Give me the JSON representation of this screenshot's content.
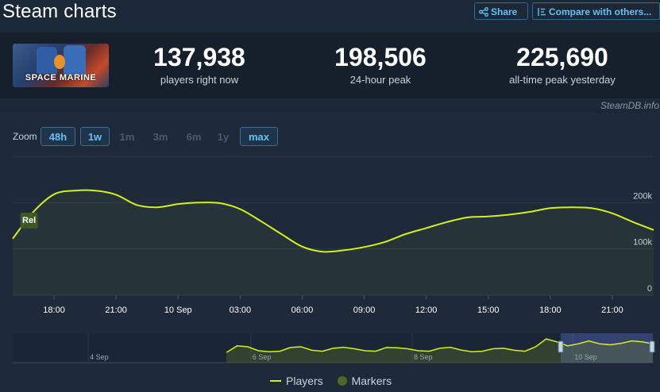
{
  "header": {
    "title": "Steam charts",
    "share_label": "Share",
    "compare_label": "Compare with others..."
  },
  "game": {
    "logo_text": "SPACE MARINE"
  },
  "stats": [
    {
      "value": "137,938",
      "label": "players right now"
    },
    {
      "value": "198,506",
      "label": "24-hour peak"
    },
    {
      "value": "225,690",
      "label": "all-time peak yesterday"
    }
  ],
  "credit": "SteamDB.info",
  "zoom": {
    "label": "Zoom",
    "options": [
      "48h",
      "1w",
      "1m",
      "3m",
      "6m",
      "1y",
      "max"
    ],
    "enabled": [
      true,
      true,
      false,
      false,
      false,
      false,
      true
    ]
  },
  "colors": {
    "line": "#d4f01a",
    "marker": "#4a6a2a",
    "accent": "#66c0f4",
    "background": "#1b2838"
  },
  "chart_data": {
    "type": "line",
    "y_tick_labels": [
      "200k",
      "100k",
      "0"
    ],
    "y_ticks": [
      200000,
      100000,
      0
    ],
    "ylim": [
      0,
      300000
    ],
    "x_tick_labels": [
      "18:00",
      "21:00",
      "10 Sep",
      "03:00",
      "06:00",
      "09:00",
      "12:00",
      "15:00",
      "18:00",
      "21:00"
    ],
    "x_tick_hours": [
      18,
      21,
      24,
      27,
      30,
      33,
      36,
      39,
      42,
      45
    ],
    "xlim_hours": [
      16,
      47
    ],
    "marker_label": "Rel",
    "marker_hour": 16.6,
    "series": [
      {
        "name": "Players",
        "x_hours": [
          16,
          17,
          18,
          19,
          20,
          21,
          22,
          23,
          24,
          25,
          26,
          27,
          28,
          29,
          30,
          31,
          32,
          33,
          34,
          35,
          36,
          37,
          38,
          39,
          40,
          41,
          42,
          43,
          44,
          45,
          46,
          47
        ],
        "values": [
          122000,
          180000,
          218000,
          226000,
          226000,
          217000,
          195000,
          190000,
          197000,
          200000,
          199000,
          186000,
          160000,
          132000,
          105000,
          94000,
          97000,
          104000,
          115000,
          132000,
          145000,
          158000,
          168000,
          170000,
          174000,
          180000,
          188000,
          190000,
          188000,
          177000,
          158000,
          141000
        ]
      }
    ],
    "navigator": {
      "labels": [
        "4 Sep",
        "6 Sep",
        "8 Sep",
        "10 Sep"
      ],
      "label_positions": [
        0.118,
        0.372,
        0.624,
        0.875
      ],
      "data_start": 0.334,
      "selected_range": [
        0.856,
        1.0
      ],
      "values": [
        0.35,
        0.62,
        0.58,
        0.42,
        0.38,
        0.4,
        0.55,
        0.58,
        0.44,
        0.4,
        0.52,
        0.56,
        0.5,
        0.42,
        0.4,
        0.55,
        0.54,
        0.5,
        0.42,
        0.4,
        0.52,
        0.56,
        0.45,
        0.38,
        0.4,
        0.5,
        0.52,
        0.44,
        0.4,
        0.58,
        0.9,
        0.78,
        0.62,
        0.7,
        0.82,
        0.7,
        0.66,
        0.72,
        0.82,
        0.78,
        0.7
      ]
    }
  },
  "legend": {
    "players_label": "Players",
    "markers_label": "Markers"
  }
}
